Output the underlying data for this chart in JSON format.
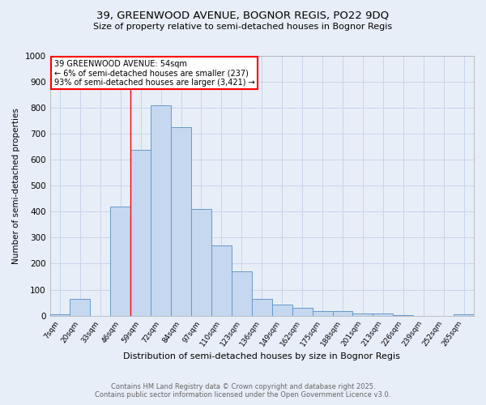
{
  "title_line1": "39, GREENWOOD AVENUE, BOGNOR REGIS, PO22 9DQ",
  "title_line2": "Size of property relative to semi-detached houses in Bognor Regis",
  "xlabel": "Distribution of semi-detached houses by size in Bognor Regis",
  "ylabel": "Number of semi-detached properties",
  "categories": [
    "7sqm",
    "20sqm",
    "33sqm",
    "46sqm",
    "59sqm",
    "72sqm",
    "84sqm",
    "97sqm",
    "110sqm",
    "123sqm",
    "136sqm",
    "149sqm",
    "162sqm",
    "175sqm",
    "188sqm",
    "201sqm",
    "213sqm",
    "226sqm",
    "239sqm",
    "252sqm",
    "265sqm"
  ],
  "values": [
    5,
    63,
    0,
    421,
    637,
    810,
    727,
    410,
    270,
    170,
    63,
    42,
    30,
    18,
    18,
    8,
    8,
    3,
    0,
    0,
    5
  ],
  "bar_color": "#c5d8f0",
  "bar_edge_color": "#6699cc",
  "bg_color": "#e8eef8",
  "grid_color": "#c8d4e8",
  "redline_x": 3.5,
  "annotation_title": "39 GREENWOOD AVENUE: 54sqm",
  "annotation_line2": "← 6% of semi-detached houses are smaller (237)",
  "annotation_line3": "93% of semi-detached houses are larger (3,421) →",
  "footer_line1": "Contains HM Land Registry data © Crown copyright and database right 2025.",
  "footer_line2": "Contains public sector information licensed under the Open Government Licence v3.0.",
  "ylim": [
    0,
    1000
  ],
  "yticks": [
    0,
    100,
    200,
    300,
    400,
    500,
    600,
    700,
    800,
    900,
    1000
  ]
}
